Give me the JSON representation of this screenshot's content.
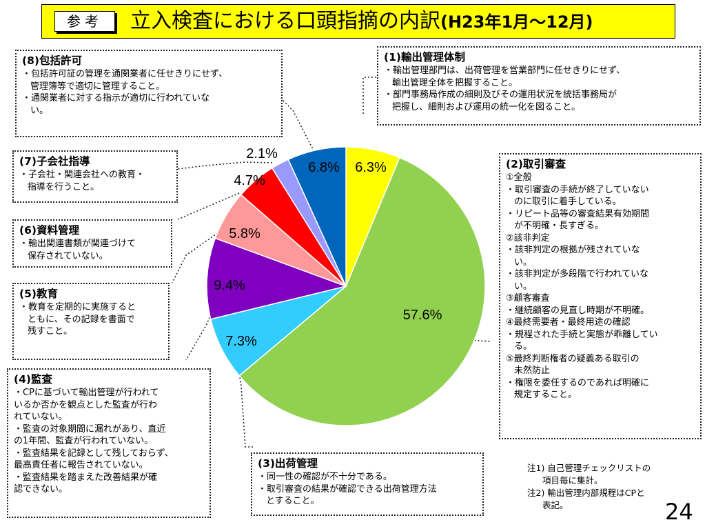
{
  "header": {
    "ref_label": "参考",
    "title": "立入検査における口頭指摘の内訳",
    "title_range": "(H23年1月～12月)"
  },
  "chart_data": {
    "type": "pie",
    "title": "立入検査における口頭指摘の内訳(H23年1月～12月)",
    "start_angle_deg": 90,
    "direction": "clockwise",
    "slices": [
      {
        "label": "(1)輸出管理体制",
        "value": 6.3,
        "text": "6.3%",
        "color": "#ffff00"
      },
      {
        "label": "(2)取引審査",
        "value": 57.6,
        "text": "57.6%",
        "color": "#92d050"
      },
      {
        "label": "(3)出荷管理",
        "value": 7.3,
        "text": "7.3%",
        "color": "#33ccff"
      },
      {
        "label": "(5)教育",
        "value": 9.4,
        "text": "9.4%",
        "color": "#7f00bf"
      },
      {
        "label": "(6)資料管理",
        "value": 5.8,
        "text": "5.8%",
        "color": "#ff9999"
      },
      {
        "label": "(7)子会社指導",
        "value": 4.7,
        "text": "4.7%",
        "color": "#ff0000"
      },
      {
        "label": "(8)包括許可",
        "value": 2.1,
        "text": "2.1%",
        "color": "#9999ff"
      },
      {
        "label": "(4)監査",
        "value": 6.8,
        "text": "6.8%",
        "color": "#0066bb"
      }
    ]
  },
  "boxes": {
    "b1": {
      "heading": "(1)輸出管理体制",
      "lines": [
        {
          "text": "・輸出管理部門は、出荷管理を営業部門に任せきりにせず、",
          "indent": false
        },
        {
          "text": "輸出管理全体を把握すること。",
          "indent": true
        },
        {
          "text": "・部門事務局作成の細則及びその運用状況を統括事務局が",
          "indent": false
        },
        {
          "text": "把握し、細則および運用の統一化を図ること。",
          "indent": true
        }
      ]
    },
    "b2": {
      "heading": "(2)取引審査",
      "lines": [
        {
          "text": "①全般",
          "indent": false
        },
        {
          "text": "・取引審査の手続が終了していない",
          "indent": false
        },
        {
          "text": "のに取引に着手している。",
          "indent": true
        },
        {
          "text": "・リピート品等の審査結果有効期間",
          "indent": false
        },
        {
          "text": "が不明確・長すぎる。",
          "indent": true
        },
        {
          "text": "②該非判定",
          "indent": false
        },
        {
          "text": "・該非判定の根拠が残されていな",
          "indent": false
        },
        {
          "text": "い。",
          "indent": true
        },
        {
          "text": "・該非判定が多段階で行われていな",
          "indent": false
        },
        {
          "text": "い。",
          "indent": true
        },
        {
          "text": "③顧客審査",
          "indent": false
        },
        {
          "text": "・継続顧客の見直し時期が不明確。",
          "indent": false
        },
        {
          "text": "④最終需要者・最終用途の確認",
          "indent": false
        },
        {
          "text": "・規程された手続と実態が乖離してい",
          "indent": false
        },
        {
          "text": "る。",
          "indent": true
        },
        {
          "text": "⑤最終判断権者の疑義ある取引の",
          "indent": false
        },
        {
          "text": "未然防止",
          "indent": true
        },
        {
          "text": "・権限を委任するのであれば明確に",
          "indent": false
        },
        {
          "text": "規定すること。",
          "indent": true
        }
      ]
    },
    "b3": {
      "heading": "(3)出荷管理",
      "lines": [
        {
          "text": "・同一性の確認が不十分である。",
          "indent": false
        },
        {
          "text": "・取引審査の結果が確認できる出荷管理方法",
          "indent": false
        },
        {
          "text": "とすること。",
          "indent": true
        }
      ]
    },
    "b4": {
      "heading": "(4)監査",
      "lines": [
        {
          "text": "・CPに基づいて輸出管理が行われて",
          "indent": false
        },
        {
          "text": "いるか否かを観点とした監査が行わ",
          "indent": false
        },
        {
          "text": "れていない。",
          "indent": false
        },
        {
          "text": "・監査の対象期間に漏れがあり、直近",
          "indent": false
        },
        {
          "text": "の1年間、監査が行われていない。",
          "indent": false
        },
        {
          "text": "・監査結果を記録として残しておらず、",
          "indent": false
        },
        {
          "text": "最高責任者に報告されていない。",
          "indent": false
        },
        {
          "text": "・監査結果を踏まえた改善結果が確",
          "indent": false
        },
        {
          "text": "認できない。",
          "indent": false
        }
      ]
    },
    "b5": {
      "heading": "(5)教育",
      "lines": [
        {
          "text": "・教育を定期的に実施すると",
          "indent": false
        },
        {
          "text": "ともに、その記録を書面で",
          "indent": true
        },
        {
          "text": "残すこと。",
          "indent": true
        }
      ]
    },
    "b6": {
      "heading": "(6)資料管理",
      "lines": [
        {
          "text": "・輸出関連書類が関連づけて",
          "indent": false
        },
        {
          "text": "保存されていない。",
          "indent": true
        }
      ]
    },
    "b7": {
      "heading": "(7)子会社指導",
      "lines": [
        {
          "text": "・子会社・関連会社への教育・",
          "indent": false
        },
        {
          "text": "指導を行うこと。",
          "indent": true
        }
      ]
    },
    "b8": {
      "heading": "(8)包括許可",
      "lines": [
        {
          "text": "・包括許可証の管理を通関業者に任せきりにせず、",
          "indent": false
        },
        {
          "text": "管理簿等で適切に管理すること。",
          "indent": true
        },
        {
          "text": "・通関業者に対する指示が適切に行われていな",
          "indent": false
        },
        {
          "text": "い。",
          "indent": true
        }
      ]
    }
  },
  "notes": [
    {
      "text": "注1) 自己管理チェックリストの",
      "indent": false
    },
    {
      "text": "項目毎に集計。",
      "indent": true
    },
    {
      "text": "注2) 輸出管理内部規程はCPと",
      "indent": false
    },
    {
      "text": "表記。",
      "indent": true
    }
  ],
  "page_number": "24"
}
